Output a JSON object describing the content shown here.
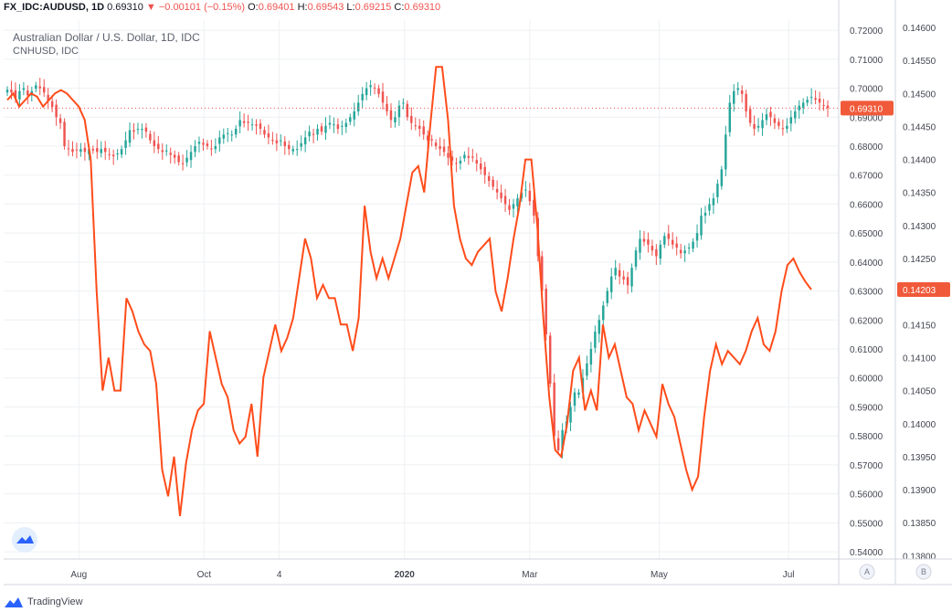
{
  "header": {
    "symbol": "FX_IDC:AUDUSD, 1D",
    "last": "0.69310",
    "change": "▼ −0.00101 (−0.15%)",
    "o_label": "O:",
    "o_value": "0.69401",
    "h_label": "H:",
    "h_value": "0.69543",
    "l_label": "L:",
    "l_value": "0.69215",
    "c_label": "C:",
    "c_value": "0.69310"
  },
  "legend": {
    "main": "Australian Dollar / U.S. Dollar, 1D, IDC",
    "compare": "CNHUSD, IDC"
  },
  "scale_buttons": {
    "a": "A",
    "b": "B"
  },
  "logo": {
    "text": "TradingView"
  },
  "colors": {
    "up": "#26a69a",
    "down": "#ef5350",
    "compare_line": "#ff4c1a",
    "grid": "#eef0f3",
    "axis_border": "#d1d4dc"
  },
  "chart_data": {
    "type": "line",
    "title": "Australian Dollar / U.S. Dollar, 1D, IDC",
    "x_ticks": [
      "Aug",
      "Oct",
      "4",
      "2020",
      "Mar",
      "May",
      "Jul"
    ],
    "y_left": {
      "ticks": [
        "0.72000",
        "0.71000",
        "0.70000",
        "0.69000",
        "0.68000",
        "0.67000",
        "0.66000",
        "0.65000",
        "0.64000",
        "0.63000",
        "0.62000",
        "0.61000",
        "0.60000",
        "0.59000",
        "0.58000",
        "0.57000",
        "0.56000",
        "0.55000",
        "0.54000"
      ],
      "range": [
        0.5375,
        0.7235
      ],
      "last_label": "0.69310"
    },
    "y_right": {
      "ticks": [
        "0.14600",
        "0.14550",
        "0.14500",
        "0.14450",
        "0.14400",
        "0.14350",
        "0.14300",
        "0.14250",
        "0.14200",
        "0.14150",
        "0.14100",
        "0.14050",
        "0.14000",
        "0.13950",
        "0.13900",
        "0.13850",
        "0.13800"
      ],
      "range": [
        0.13795,
        0.14611
      ],
      "last_label": "0.14203"
    },
    "series": [
      {
        "name": "Australian Dollar / U.S. Dollar",
        "kind": "candlestick",
        "values": [
          0.6995,
          0.6985,
          0.6965,
          0.699,
          0.7,
          0.6975,
          0.699,
          0.701,
          0.7,
          0.6985,
          0.6955,
          0.6935,
          0.69,
          0.688,
          0.68,
          0.679,
          0.678,
          0.6785,
          0.679,
          0.678,
          0.679,
          0.6785,
          0.678,
          0.679,
          0.678,
          0.677,
          0.6765,
          0.6775,
          0.679,
          0.682,
          0.6855,
          0.685,
          0.686,
          0.686,
          0.685,
          0.682,
          0.68,
          0.679,
          0.678,
          0.6785,
          0.677,
          0.676,
          0.6745,
          0.674,
          0.676,
          0.678,
          0.68,
          0.6815,
          0.6805,
          0.68,
          0.679,
          0.68,
          0.683,
          0.684,
          0.6845,
          0.684,
          0.686,
          0.689,
          0.688,
          0.688,
          0.6875,
          0.687,
          0.686,
          0.684,
          0.683,
          0.682,
          0.681,
          0.682,
          0.68,
          0.679,
          0.679,
          0.679,
          0.681,
          0.683,
          0.685,
          0.684,
          0.686,
          0.685,
          0.687,
          0.688,
          0.6875,
          0.686,
          0.687,
          0.688,
          0.69,
          0.692,
          0.695,
          0.698,
          0.7,
          0.701,
          0.7,
          0.698,
          0.695,
          0.692,
          0.689,
          0.69,
          0.694,
          0.695,
          0.69,
          0.688,
          0.687,
          0.686,
          0.684,
          0.682,
          0.682,
          0.68,
          0.679,
          0.678,
          0.676,
          0.675,
          0.674,
          0.675,
          0.677,
          0.676,
          0.676,
          0.674,
          0.672,
          0.67,
          0.668,
          0.666,
          0.664,
          0.662,
          0.66,
          0.658,
          0.66,
          0.662,
          0.664,
          0.665,
          0.661,
          0.656,
          0.642,
          0.63,
          0.615,
          0.598,
          0.58,
          0.575,
          0.582,
          0.585,
          0.59,
          0.595,
          0.595,
          0.6,
          0.605,
          0.61,
          0.616,
          0.62,
          0.625,
          0.63,
          0.635,
          0.638,
          0.635,
          0.634,
          0.632,
          0.638,
          0.644,
          0.648,
          0.647,
          0.646,
          0.644,
          0.642,
          0.646,
          0.649,
          0.648,
          0.646,
          0.645,
          0.643,
          0.644,
          0.645,
          0.647,
          0.65,
          0.656,
          0.657,
          0.66,
          0.662,
          0.667,
          0.672,
          0.684,
          0.695,
          0.699,
          0.7,
          0.698,
          0.692,
          0.688,
          0.686,
          0.687,
          0.689,
          0.691,
          0.69,
          0.688,
          0.687,
          0.686,
          0.687,
          0.69,
          0.692,
          0.694,
          0.695,
          0.696,
          0.697,
          0.696,
          0.695,
          0.694,
          0.6931
        ]
      },
      {
        "name": "CNHUSD, IDC",
        "kind": "line",
        "values": [
          0.1449,
          0.145,
          0.1448,
          0.1449,
          0.145,
          0.14495,
          0.1448,
          0.1449,
          0.145,
          0.14505,
          0.145,
          0.1449,
          0.1448,
          0.1446,
          0.144,
          0.142,
          0.1405,
          0.141,
          0.1405,
          0.1405,
          0.1419,
          0.1417,
          0.1414,
          0.1412,
          0.1411,
          0.1406,
          0.1393,
          0.1389,
          0.1395,
          0.1386,
          0.1394,
          0.1399,
          0.1402,
          0.1403,
          0.1414,
          0.141,
          0.1406,
          0.1404,
          0.1399,
          0.1397,
          0.1398,
          0.1403,
          0.1395,
          0.1407,
          0.1411,
          0.1415,
          0.1411,
          0.1413,
          0.1416,
          0.1422,
          0.1428,
          0.1425,
          0.1419,
          0.1421,
          0.1419,
          0.1419,
          0.1415,
          0.1415,
          0.1411,
          0.1416,
          0.1433,
          0.1426,
          0.1422,
          0.1425,
          0.1422,
          0.1425,
          0.1428,
          0.1433,
          0.1438,
          0.1439,
          0.1435,
          0.1445,
          0.1454,
          0.1454,
          0.1446,
          0.1433,
          0.1428,
          0.1425,
          0.1424,
          0.1426,
          0.1427,
          0.1428,
          0.142,
          0.1417,
          0.1422,
          0.1428,
          0.1433,
          0.144,
          0.144,
          0.143,
          0.1416,
          0.1404,
          0.1396,
          0.1395,
          0.14,
          0.1408,
          0.141,
          0.1402,
          0.1405,
          0.1402,
          0.1415,
          0.141,
          0.1412,
          0.1408,
          0.1404,
          0.1403,
          0.1399,
          0.1402,
          0.14,
          0.1398,
          0.1406,
          0.1403,
          0.1401,
          0.1397,
          0.1393,
          0.139,
          0.1392,
          0.1401,
          0.1408,
          0.1412,
          0.1409,
          0.1411,
          0.141,
          0.1409,
          0.1411,
          0.1414,
          0.1416,
          0.1412,
          0.1411,
          0.1414,
          0.142,
          0.1424,
          0.1425,
          0.1423,
          0.14215,
          0.14203
        ]
      }
    ]
  }
}
